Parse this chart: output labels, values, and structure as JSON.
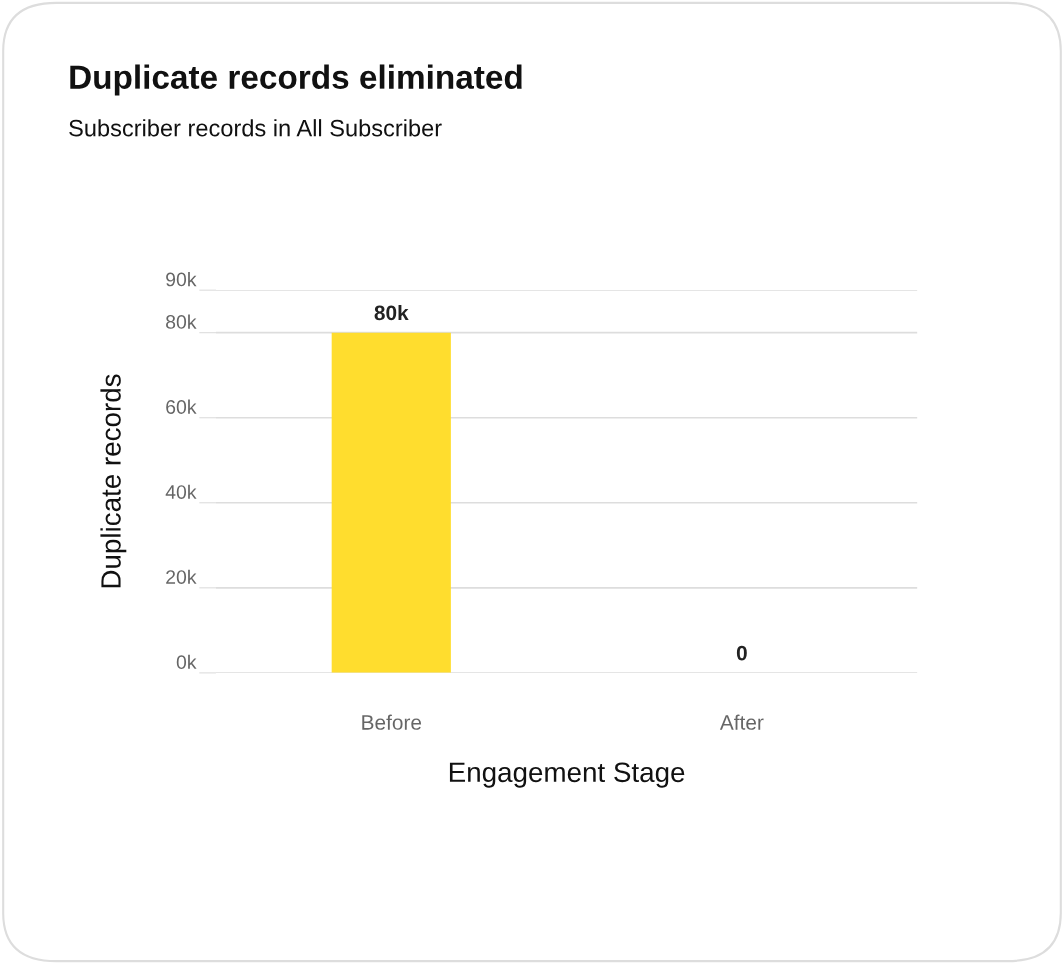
{
  "chart_data": {
    "type": "bar",
    "title": "Duplicate records eliminated",
    "subtitle": "Subscriber records in All Subscriber",
    "xlabel": "Engagement Stage",
    "ylabel": "Duplicate records",
    "categories": [
      "Before",
      "After"
    ],
    "values": [
      80000,
      0
    ],
    "color": "#ffdd2e",
    "value_labels": [
      "80k",
      "0"
    ],
    "ylim": [
      0,
      90000
    ],
    "yticks": [
      {
        "value": 0,
        "label": "0k"
      },
      {
        "value": 20000,
        "label": "20k"
      },
      {
        "value": 40000,
        "label": "40k"
      },
      {
        "value": 60000,
        "label": "60k"
      },
      {
        "value": 80000,
        "label": "80k"
      },
      {
        "value": 90000,
        "label": "90k"
      }
    ],
    "grid": "y"
  }
}
